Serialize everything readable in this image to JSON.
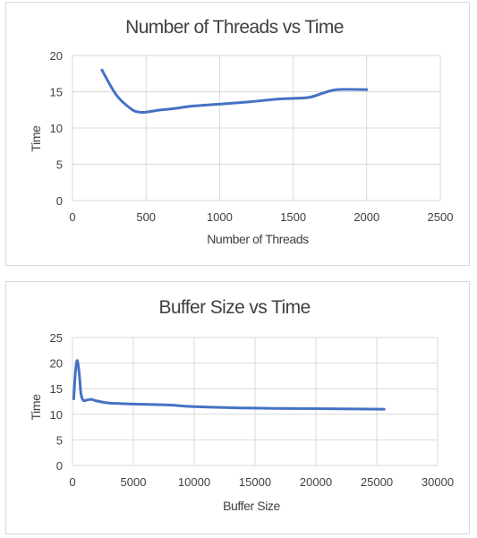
{
  "charts": [
    {
      "title": "Number of Threads vs Time",
      "xlabel": "Number of Threads",
      "ylabel": "Time"
    },
    {
      "title": "Buffer Size vs Time",
      "xlabel": "Buffer Size",
      "ylabel": "Time"
    }
  ],
  "colors": {
    "series": "#4472c4",
    "grid": "#d9d9d9",
    "text": "#404040"
  },
  "chart_data": [
    {
      "type": "line",
      "title": "Number of Threads vs Time",
      "xlabel": "Number of Threads",
      "ylabel": "Time",
      "xlim": [
        0,
        2500
      ],
      "ylim": [
        0,
        20
      ],
      "xticks": [
        0,
        500,
        1000,
        1500,
        2000,
        2500
      ],
      "yticks": [
        0,
        5,
        10,
        15,
        20
      ],
      "grid": true,
      "legend": "none",
      "series": [
        {
          "x": [
            200,
            300,
            400,
            450,
            500,
            600,
            700,
            800,
            1000,
            1200,
            1400,
            1600,
            1700,
            1800,
            2000
          ],
          "y": [
            18.0,
            14.5,
            12.6,
            12.2,
            12.2,
            12.5,
            12.7,
            13.0,
            13.3,
            13.6,
            14.0,
            14.2,
            14.8,
            15.3,
            15.3
          ]
        }
      ]
    },
    {
      "type": "line",
      "title": "Buffer Size vs Time",
      "xlabel": "Buffer Size",
      "ylabel": "Time",
      "xlim": [
        0,
        30000
      ],
      "ylim": [
        0,
        25
      ],
      "xticks": [
        0,
        5000,
        10000,
        15000,
        20000,
        25000,
        30000
      ],
      "yticks": [
        0,
        5,
        10,
        15,
        20,
        25
      ],
      "grid": true,
      "legend": "none",
      "series": [
        {
          "x": [
            100,
            250,
            400,
            550,
            700,
            900,
            1200,
            1600,
            2000,
            3000,
            5000,
            8000,
            10000,
            15000,
            20000,
            25600
          ],
          "y": [
            13.0,
            18.5,
            20.5,
            18.0,
            14.0,
            12.7,
            12.8,
            12.9,
            12.6,
            12.2,
            12.0,
            11.8,
            11.5,
            11.2,
            11.1,
            11.0
          ]
        }
      ]
    }
  ]
}
